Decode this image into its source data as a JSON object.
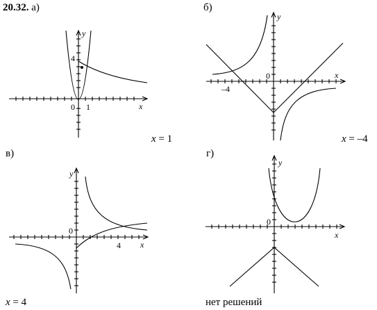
{
  "problem_number": "20.32.",
  "panels": [
    {
      "label": "а)",
      "answer_prefix": "x",
      "answer_value": " = 1",
      "axis_x": "x",
      "axis_y": "y",
      "ticks": [
        "4",
        "0",
        "1"
      ]
    },
    {
      "label": "б)",
      "answer_prefix": "x",
      "answer_value": " = –4",
      "axis_x": "x",
      "axis_y": "y",
      "ticks": [
        "0",
        "–4"
      ]
    },
    {
      "label": "в)",
      "answer_prefix": "x",
      "answer_value": " = 4",
      "axis_x": "x",
      "axis_y": "y",
      "ticks": [
        "0",
        "4"
      ]
    },
    {
      "label": "г)",
      "answer_text": "нет решений",
      "axis_x": "x",
      "axis_y": "y",
      "ticks": [
        "0"
      ]
    }
  ]
}
